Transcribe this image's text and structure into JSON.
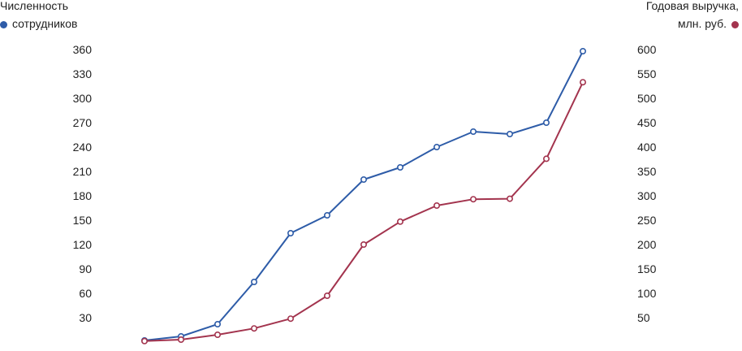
{
  "legend": {
    "left_line1": "Численность",
    "left_line2": "сотрудников",
    "right_line1": "Годовая выручка,",
    "right_line2": "млн. руб."
  },
  "colors": {
    "employees": "#2e5ca8",
    "revenue": "#a3344e"
  },
  "chart_data": {
    "type": "line",
    "x": [
      1,
      2,
      3,
      4,
      5,
      6,
      7,
      8,
      9,
      10,
      11,
      12,
      13
    ],
    "y_left": {
      "ticks": [
        "30",
        "60",
        "90",
        "120",
        "150",
        "180",
        "210",
        "240",
        "270",
        "300",
        "330",
        "360"
      ],
      "ylim": [
        0,
        360
      ]
    },
    "y_right": {
      "ticks": [
        "50",
        "100",
        "150",
        "200",
        "250",
        "300",
        "350",
        "400",
        "450",
        "500",
        "550",
        "600"
      ],
      "ylim": [
        0,
        600
      ]
    },
    "series": [
      {
        "name": "Численность сотрудников",
        "axis": "left",
        "values": [
          2,
          7,
          22,
          74,
          134,
          156,
          200,
          215,
          240,
          259,
          256,
          270,
          358
        ]
      },
      {
        "name": "Годовая выручка, млн. руб.",
        "axis": "right",
        "values": [
          2,
          5,
          15,
          28,
          48,
          95,
          200,
          247,
          280,
          293,
          294,
          376,
          533
        ]
      }
    ]
  }
}
